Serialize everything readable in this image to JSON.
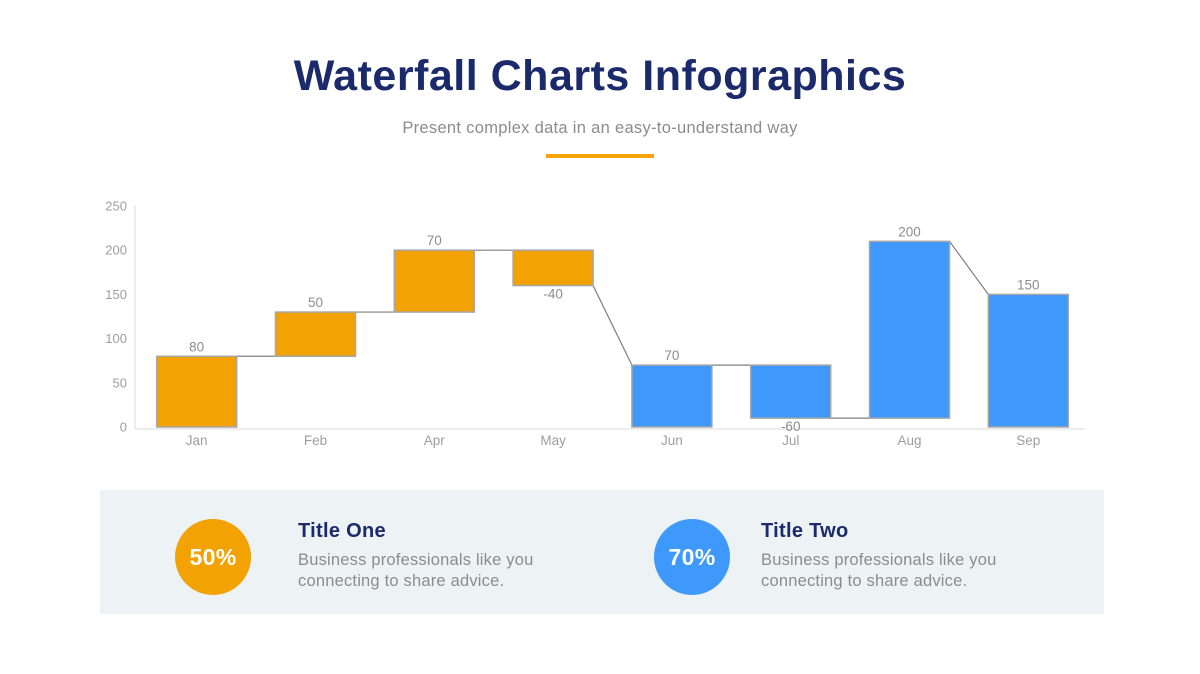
{
  "header": {
    "title": "Waterfall Charts Infographics",
    "subtitle": "Present complex data in an easy-to-understand way",
    "title_color": "#1B2A6B",
    "subtitle_color": "#8C8C8C",
    "divider_color": "#F7A30A"
  },
  "chart_data": {
    "type": "waterfall",
    "categories": [
      "Jan",
      "Feb",
      "Apr",
      "May",
      "Jun",
      "Jul",
      "Aug",
      "Sep"
    ],
    "bars": [
      {
        "category": "Jan",
        "base": 0,
        "top": 80,
        "label": "80",
        "label_position": "above",
        "color": "#F2A202"
      },
      {
        "category": "Feb",
        "base": 80,
        "top": 130,
        "label": "50",
        "label_position": "above",
        "color": "#F2A202"
      },
      {
        "category": "Apr",
        "base": 130,
        "top": 200,
        "label": "70",
        "label_position": "above",
        "color": "#F2A202"
      },
      {
        "category": "May",
        "base": 160,
        "top": 200,
        "label": "-40",
        "label_position": "below",
        "color": "#F2A202"
      },
      {
        "category": "Jun",
        "base": 0,
        "top": 70,
        "label": "70",
        "label_position": "above",
        "color": "#3E99FA"
      },
      {
        "category": "Jul",
        "base": 10,
        "top": 70,
        "label": "-60",
        "label_position": "below",
        "color": "#3E99FA"
      },
      {
        "category": "Aug",
        "base": 10,
        "top": 210,
        "label": "200",
        "label_position": "above",
        "color": "#3E99FA"
      },
      {
        "category": "Sep",
        "base": 0,
        "top": 150,
        "label": "150",
        "label_position": "above",
        "color": "#3E99FA"
      }
    ],
    "connectors": [
      {
        "from_index": 0,
        "from_value": 80,
        "to_index": 1,
        "to_value": 80
      },
      {
        "from_index": 1,
        "from_value": 130,
        "to_index": 2,
        "to_value": 130
      },
      {
        "from_index": 2,
        "from_value": 200,
        "to_index": 3,
        "to_value": 200
      },
      {
        "from_index": 3,
        "from_value": 160,
        "to_index": 4,
        "to_value": 70
      },
      {
        "from_index": 4,
        "from_value": 70,
        "to_index": 5,
        "to_value": 70
      },
      {
        "from_index": 5,
        "from_value": 10,
        "to_index": 6,
        "to_value": 10
      },
      {
        "from_index": 6,
        "from_value": 210,
        "to_index": 7,
        "to_value": 150
      }
    ],
    "yticks": [
      0,
      50,
      100,
      150,
      200,
      250
    ],
    "ylim": [
      0,
      250
    ],
    "grid": false,
    "legend": false,
    "colors": {
      "orange_series": "#F2A202",
      "blue_series": "#3E99FA",
      "bar_border": "#A6A6A6",
      "connector_line": "#7F7F7F",
      "axis_line": "#DBDBDB",
      "tick_label": "#9E9E9E",
      "value_label": "#8C8C8C"
    }
  },
  "cards": {
    "background": "#EDF2F5",
    "items": [
      {
        "badge": "50%",
        "badge_color": "#F2A202",
        "title": "Title One",
        "description_line1": "Business professionals like you",
        "description_line2": "connecting to share advice."
      },
      {
        "badge": "70%",
        "badge_color": "#3E99FA",
        "title": "Title Two",
        "description_line1": "Business professionals like you",
        "description_line2": "connecting to share advice."
      }
    ]
  }
}
